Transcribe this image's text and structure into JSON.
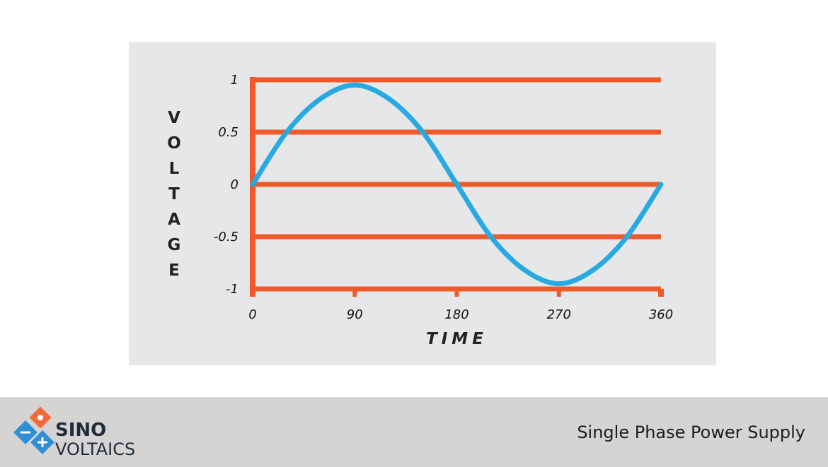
{
  "chart_data": {
    "type": "line",
    "title": "",
    "xlabel": "TIME",
    "ylabel": "VOLTAGE",
    "x_ticks": [
      "0",
      "90",
      "180",
      "270",
      "360"
    ],
    "y_ticks": [
      "1",
      "0.5",
      "0",
      "-0.5",
      "-1"
    ],
    "xlim": [
      0,
      360
    ],
    "ylim": [
      -1,
      1
    ],
    "grid": true,
    "series": [
      {
        "x": [
          0,
          30,
          60,
          90,
          120,
          150,
          180,
          210,
          240,
          270,
          300,
          330,
          360
        ],
        "y": [
          0,
          0.5,
          0.82,
          0.95,
          0.82,
          0.5,
          0,
          -0.5,
          -0.82,
          -0.95,
          -0.82,
          -0.5,
          0
        ]
      }
    ],
    "colors": {
      "line": "#29a9e1",
      "grid": "#f05a28",
      "panel": "#e6e7e9"
    }
  },
  "footer": {
    "brand_line_1": "SINO",
    "brand_line_2": "VOLTAICS",
    "title": "Single Phase Power Supply"
  }
}
